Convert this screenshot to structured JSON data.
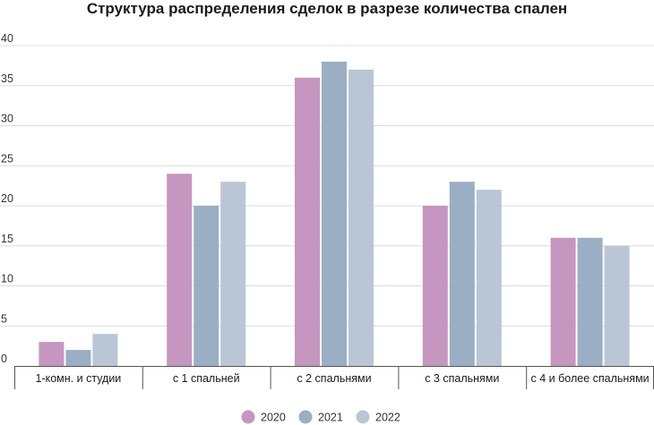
{
  "chart_data": {
    "type": "bar",
    "title": "Структура распределения сделок в разрезе количества спален",
    "xlabel": "",
    "ylabel": "",
    "ylim": [
      0,
      40
    ],
    "yticks": [
      0,
      5,
      10,
      15,
      20,
      25,
      30,
      35,
      40
    ],
    "grid": true,
    "legend_position": "bottom",
    "categories": [
      "1-комн. и студии",
      "с 1 спальней",
      "с 2 спальнями",
      "с 3 спальнями",
      "с 4 и более спальнями"
    ],
    "series": [
      {
        "name": "2020",
        "color": "#c596c0",
        "values": [
          3,
          24,
          36,
          20,
          16
        ]
      },
      {
        "name": "2021",
        "color": "#9aaec4",
        "values": [
          2,
          20,
          38,
          23,
          16
        ]
      },
      {
        "name": "2022",
        "color": "#b8c6d6",
        "values": [
          4,
          23,
          37,
          22,
          15
        ]
      }
    ]
  }
}
